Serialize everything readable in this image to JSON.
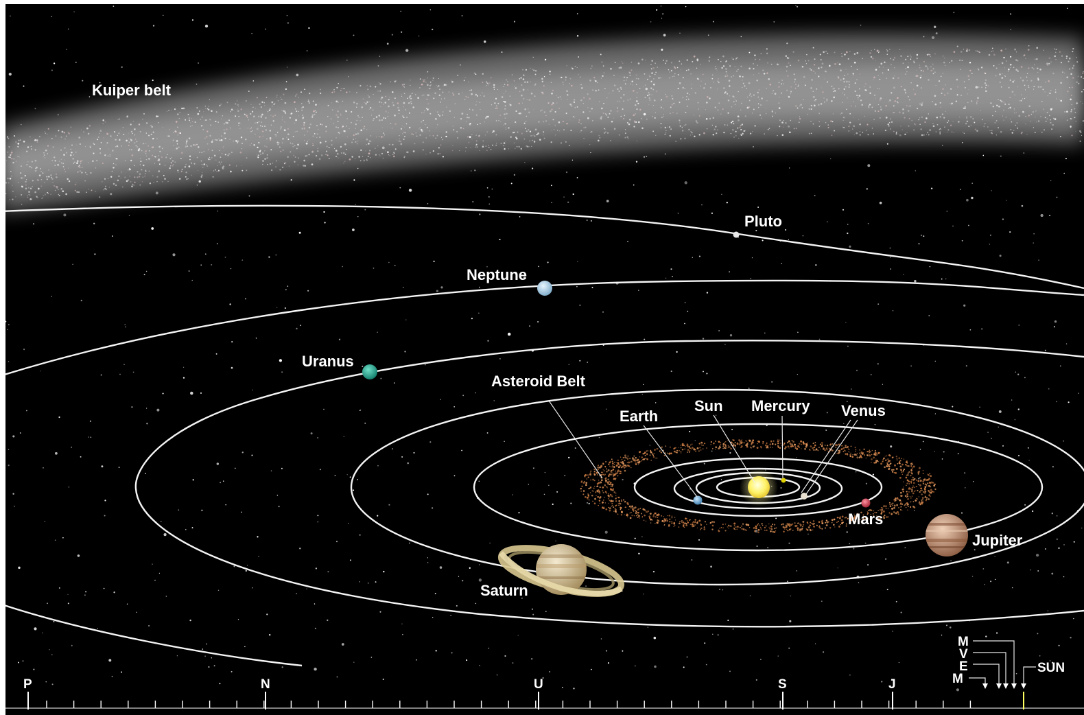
{
  "labels": {
    "kuiper_belt": "Kuiper belt",
    "pluto": "Pluto",
    "neptune": "Neptune",
    "uranus": "Uranus",
    "asteroid_belt": "Asteroid Belt",
    "earth": "Earth",
    "sun": "Sun",
    "mercury": "Mercury",
    "venus": "Venus",
    "mars": "Mars",
    "jupiter": "Jupiter",
    "saturn": "Saturn"
  },
  "scale_bar": {
    "markers": [
      "P",
      "N",
      "U",
      "S",
      "J"
    ],
    "inner_markers": [
      "M",
      "V",
      "E",
      "M"
    ],
    "sun": "SUN"
  },
  "colors": {
    "space": "#000000",
    "orbit": "#f4f4f4",
    "sun": "#fff36a",
    "mercury": "#e0d000",
    "venus": "#e8e0d0",
    "earth": "#78b4d8",
    "mars": "#d04050",
    "jupiter": "#c89070",
    "saturn": "#e0d0a0",
    "uranus": "#1fa890",
    "neptune": "#b8dcf0",
    "pluto": "#e0e0e0",
    "asteroid_belt": "#c87840",
    "kuiper_belt": "#c8c8c8"
  }
}
